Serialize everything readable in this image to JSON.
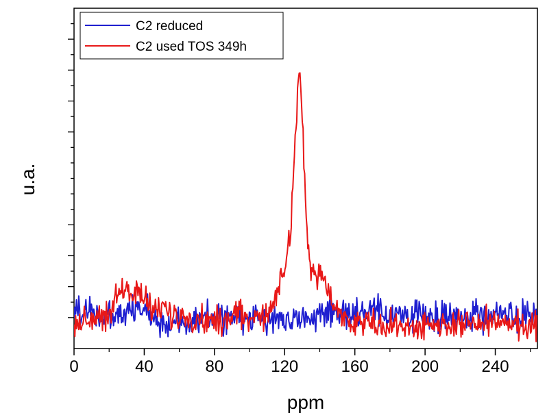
{
  "chart_data": {
    "type": "line",
    "title": "",
    "xlabel": "ppm",
    "ylabel": "u.a.",
    "xlim": [
      0,
      264
    ],
    "ylim": [
      -0.2,
      2.0
    ],
    "grid": false,
    "legend_position": "top-left",
    "x_ticks": [
      "0",
      "40",
      "80",
      "120",
      "160",
      "200",
      "240"
    ],
    "y_ticks_labeled": false,
    "series": [
      {
        "name": "C2 reduced",
        "color": "#1f1fd0",
        "noise": 0.05,
        "x": [
          0,
          10,
          20,
          30,
          40,
          50,
          55,
          60,
          70,
          80,
          90,
          100,
          110,
          120,
          130,
          140,
          150,
          160,
          170,
          180,
          190,
          200,
          210,
          220,
          230,
          240,
          250,
          264
        ],
        "y": [
          0.05,
          0.04,
          -0.01,
          0.03,
          0.06,
          -0.02,
          -0.08,
          -0.01,
          0.0,
          -0.01,
          0.0,
          -0.02,
          0.0,
          0.0,
          -0.01,
          0.01,
          0.04,
          0.02,
          0.03,
          0.02,
          0.01,
          0.02,
          0.0,
          0.02,
          0.01,
          0.02,
          0.0,
          -0.01
        ]
      },
      {
        "name": "C2 used TOS 349h",
        "color": "#e81818",
        "noise": 0.045,
        "x": [
          0,
          10,
          20,
          25,
          30,
          35,
          40,
          45,
          50,
          60,
          70,
          80,
          90,
          100,
          110,
          113,
          116,
          120,
          123,
          125,
          127,
          128,
          129,
          131,
          133,
          135,
          138,
          141,
          143,
          145,
          148,
          150,
          155,
          160,
          165,
          170,
          180,
          190,
          200,
          210,
          220,
          230,
          240,
          250,
          264
        ],
        "y": [
          -0.05,
          0.0,
          0.02,
          0.17,
          0.17,
          0.16,
          0.13,
          0.07,
          0.03,
          0.0,
          -0.01,
          -0.02,
          0.0,
          0.01,
          0.02,
          0.08,
          0.18,
          0.28,
          0.55,
          0.92,
          1.35,
          1.6,
          1.55,
          1.0,
          0.45,
          0.3,
          0.28,
          0.3,
          0.24,
          0.16,
          0.06,
          0.02,
          0.01,
          -0.02,
          -0.04,
          -0.04,
          -0.05,
          -0.06,
          -0.05,
          -0.05,
          -0.05,
          -0.04,
          -0.03,
          -0.05,
          -0.06
        ]
      }
    ]
  }
}
